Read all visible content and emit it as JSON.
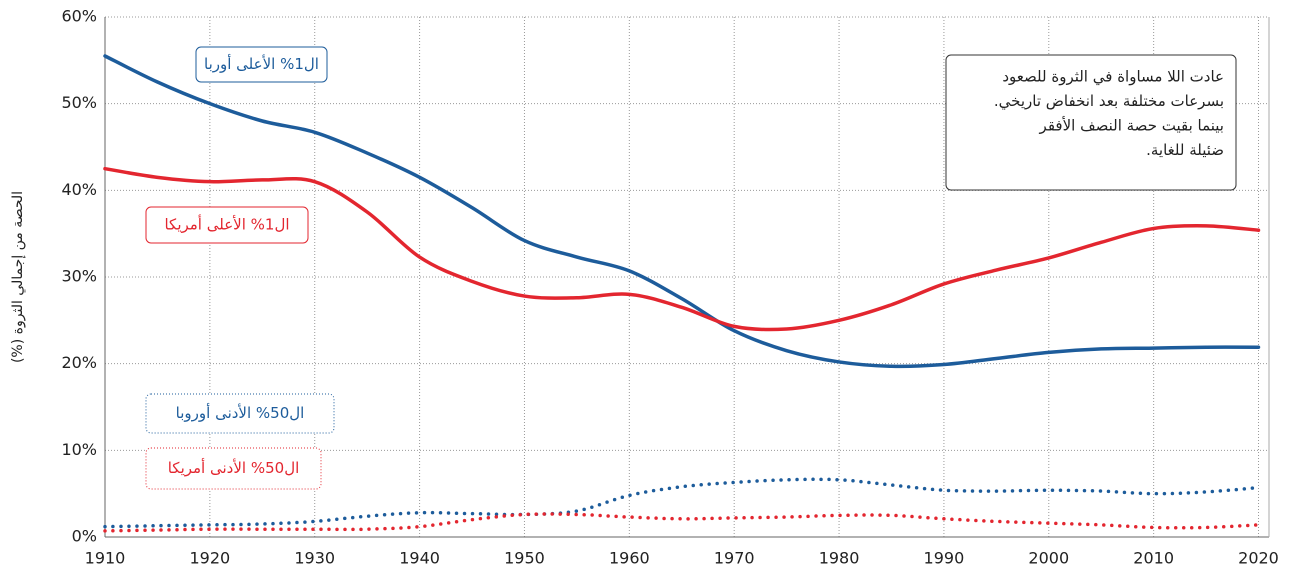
{
  "chart_data": {
    "type": "line",
    "y_axis_label": "الحصة من إجمالي الثروة (%)",
    "annotation": [
      "عادت اللا مساواة في الثروة للصعود",
      "بسرعات مختلفة بعد انخفاض تاريخي.",
      "بينما بقيت حصة النصف الأفقر",
      "ضئيلة للغاية."
    ],
    "x": [
      1910,
      1915,
      1920,
      1925,
      1930,
      1935,
      1940,
      1945,
      1950,
      1955,
      1960,
      1965,
      1970,
      1975,
      1980,
      1985,
      1990,
      1995,
      2000,
      2005,
      2010,
      2015,
      2020
    ],
    "series": [
      {
        "name": "ال1% الأعلى أوربا",
        "color": "#1d5c9b",
        "style": "solid",
        "values": [
          55.5,
          52.5,
          50,
          48,
          46.7,
          44.3,
          41.5,
          38,
          34.2,
          32.3,
          30.7,
          27.5,
          23.8,
          21.5,
          20.2,
          19.7,
          19.9,
          20.6,
          21.3,
          21.7,
          21.8,
          21.9,
          21.9
        ]
      },
      {
        "name": "ال1% الأعلى أمريكا",
        "color": "#e3262f",
        "style": "solid",
        "values": [
          42.5,
          41.5,
          41,
          41.2,
          41,
          37.5,
          32.3,
          29.5,
          27.8,
          27.6,
          28,
          26.5,
          24.3,
          24,
          25,
          26.8,
          29.2,
          30.8,
          32.2,
          34,
          35.6,
          35.9,
          35.4
        ]
      },
      {
        "name": "ال50% الأدنى أوروبا",
        "color": "#1d5c9b",
        "style": "dotted",
        "values": [
          1.2,
          1.3,
          1.4,
          1.5,
          1.8,
          2.4,
          2.8,
          2.7,
          2.6,
          3,
          4.8,
          5.8,
          6.3,
          6.6,
          6.6,
          6,
          5.4,
          5.3,
          5.4,
          5.3,
          5,
          5.2,
          5.7
        ]
      },
      {
        "name": "ال50% الأدنى أمريكا",
        "color": "#e3262f",
        "style": "dotted",
        "values": [
          0.7,
          0.8,
          0.9,
          0.9,
          0.9,
          0.9,
          1.2,
          2,
          2.6,
          2.6,
          2.3,
          2.1,
          2.2,
          2.3,
          2.5,
          2.5,
          2.1,
          1.8,
          1.6,
          1.4,
          1.1,
          1.1,
          1.4
        ]
      }
    ],
    "xlim": [
      1910,
      2021
    ],
    "xticks": [
      1910,
      1920,
      1930,
      1940,
      1950,
      1960,
      1970,
      1980,
      1990,
      2000,
      2010,
      2020
    ],
    "ylim": [
      0,
      60
    ],
    "yticks": [
      {
        "value": 0,
        "label": "0%"
      },
      {
        "value": 10,
        "label": "10%"
      },
      {
        "value": 20,
        "label": "20%"
      },
      {
        "value": 30,
        "label": "30%"
      },
      {
        "value": 40,
        "label": "40%"
      },
      {
        "value": 50,
        "label": "50%"
      },
      {
        "value": 60,
        "label": "60%"
      }
    ],
    "grid": true
  }
}
